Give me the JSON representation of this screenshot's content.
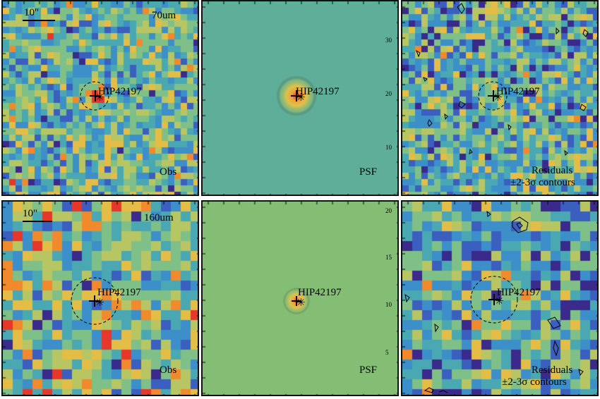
{
  "panels": [
    {
      "row": 0,
      "col": 0,
      "kind": "obs",
      "band": "70um",
      "scale_label": "10\"",
      "corner_label": "Obs",
      "source": "HIP42197",
      "palette": [
        "#3a2a8c",
        "#3b5fbf",
        "#3d8fc9",
        "#4aa8b3",
        "#7fbf88",
        "#b7c663",
        "#e3bd45",
        "#f08a2c",
        "#e5382a"
      ],
      "tick_labels": []
    },
    {
      "row": 0,
      "col": 1,
      "kind": "psf",
      "corner_label": "PSF",
      "source": "HIP42197",
      "tick_labels": [
        "10",
        "20",
        "30"
      ]
    },
    {
      "row": 0,
      "col": 2,
      "kind": "resid",
      "corner_label": "Residuals",
      "corner_label2": "±2-3σ contours",
      "source": "HIP42197",
      "tick_labels": []
    },
    {
      "row": 1,
      "col": 0,
      "kind": "obs",
      "band": "160um",
      "scale_label": "10\"",
      "corner_label": "Obs",
      "source": "HIP42197",
      "tick_labels": []
    },
    {
      "row": 1,
      "col": 1,
      "kind": "psf",
      "corner_label": "PSF",
      "source": "HIP42197",
      "tick_labels": [
        "5",
        "10",
        "15",
        "20"
      ]
    },
    {
      "row": 1,
      "col": 2,
      "kind": "resid",
      "corner_label": "Residuals",
      "corner_label2": "±2-3σ contours",
      "source": "HIP42197",
      "tick_labels": []
    }
  ]
}
